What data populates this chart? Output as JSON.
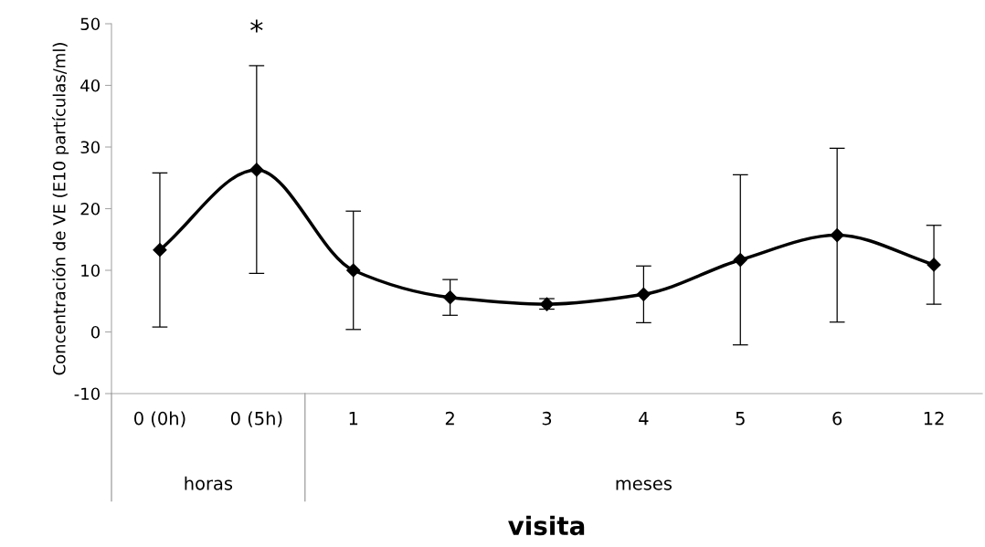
{
  "chart_data": {
    "type": "line",
    "xlabel": "visita",
    "ylabel": "Concentración de VE (E10 partículas/ml)",
    "categories": [
      "0 (0h)",
      "0 (5h)",
      "1",
      "2",
      "3",
      "4",
      "5",
      "6",
      "12"
    ],
    "series": [
      {
        "color": "#000000",
        "values": [
          13.3,
          26.3,
          10.0,
          5.6,
          4.5,
          6.1,
          11.7,
          15.7,
          10.9
        ],
        "errors": [
          [
            0.8,
            25.8
          ],
          [
            9.5,
            43.2
          ],
          [
            0.4,
            19.6
          ],
          [
            2.7,
            8.5
          ],
          [
            3.7,
            5.4
          ],
          [
            1.5,
            10.7
          ],
          [
            -2.1,
            25.5
          ],
          [
            1.6,
            29.8
          ],
          [
            4.5,
            17.3
          ]
        ]
      }
    ],
    "ylim": [
      -10,
      50
    ],
    "yticks": [
      -10,
      0,
      10,
      20,
      30,
      40,
      50
    ],
    "marker": "diamond",
    "line_style": "solid",
    "grid": false,
    "legend": false,
    "annotations": [
      "*",
      "horas",
      "meses"
    ]
  }
}
